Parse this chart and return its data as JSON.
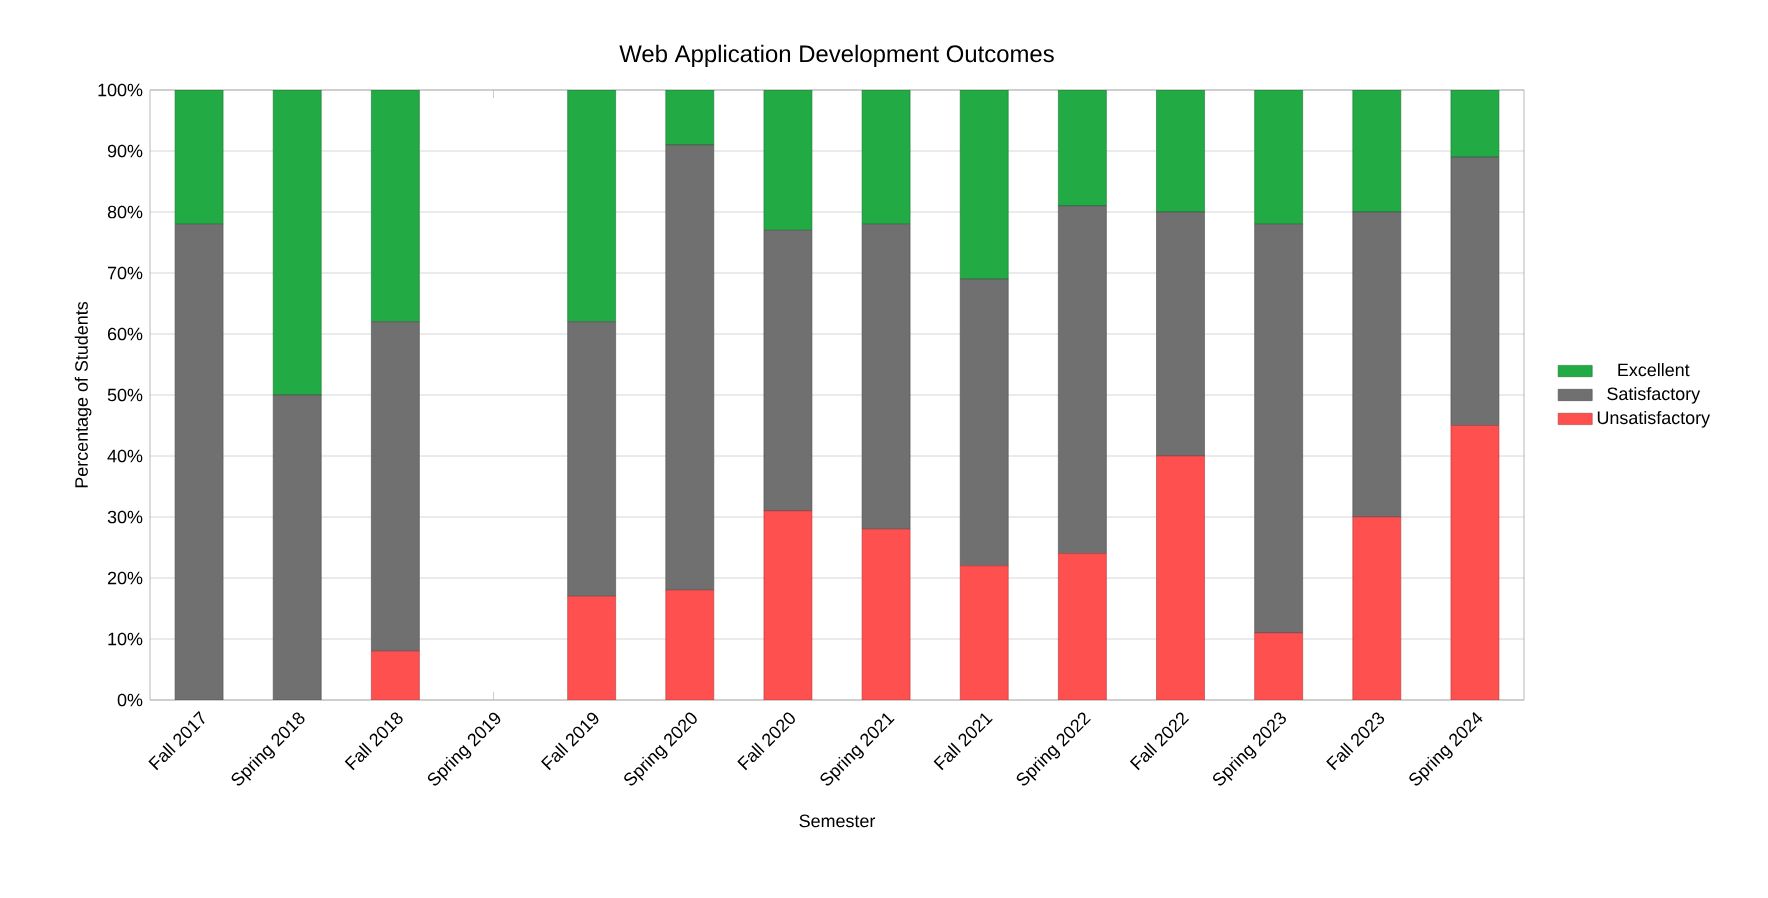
{
  "chart_data": {
    "type": "bar",
    "title": "Web Application Development Outcomes",
    "xlabel": "Semester",
    "ylabel": "Percentage of Students",
    "categories": [
      "Fall 2017",
      "Spring 2018",
      "Fall 2018",
      "Spring 2019",
      "Fall 2019",
      "Spring 2020",
      "Fall 2020",
      "Spring 2021",
      "Fall 2021",
      "Spring 2022",
      "Fall 2022",
      "Spring 2023",
      "Fall 2023",
      "Spring 2024"
    ],
    "stacked": true,
    "series": [
      {
        "name": "Unsatisfactory",
        "color": "#ff5050",
        "values": [
          0,
          0,
          8,
          null,
          17,
          18,
          31,
          28,
          22,
          24,
          40,
          11,
          30,
          45
        ]
      },
      {
        "name": "Satisfactory",
        "color": "#707070",
        "values": [
          78,
          50,
          54,
          null,
          45,
          73,
          46,
          50,
          47,
          57,
          40,
          67,
          50,
          44
        ]
      },
      {
        "name": "Excellent",
        "color": "#22aa44",
        "values": [
          22,
          50,
          38,
          null,
          38,
          9,
          23,
          22,
          31,
          19,
          20,
          22,
          20,
          11
        ]
      }
    ],
    "ylim": [
      0,
      100
    ],
    "yticks": [
      {
        "value": 0,
        "label": "0%"
      },
      {
        "value": 10,
        "label": "10%"
      },
      {
        "value": 20,
        "label": "20%"
      },
      {
        "value": 30,
        "label": "30%"
      },
      {
        "value": 40,
        "label": "40%"
      },
      {
        "value": 50,
        "label": "50%"
      },
      {
        "value": 60,
        "label": "60%"
      },
      {
        "value": 70,
        "label": "70%"
      },
      {
        "value": 80,
        "label": "80%"
      },
      {
        "value": 90,
        "label": "90%"
      },
      {
        "value": 100,
        "label": "100%"
      }
    ],
    "grid": "y",
    "legend": "right"
  }
}
